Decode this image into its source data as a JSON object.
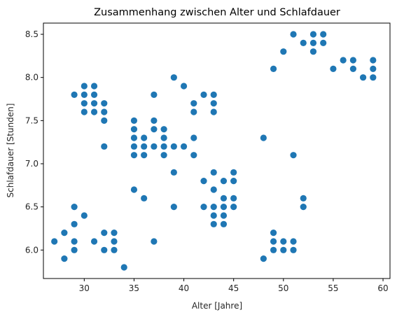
{
  "chart_data": {
    "type": "scatter",
    "title": "Zusammenhang zwischen Alter und Schlafdauer",
    "xlabel": "Alter [Jahre]",
    "ylabel": "Schlafdauer [Stunden]",
    "xlim": [
      25.9,
      60.7
    ],
    "ylim": [
      5.67,
      8.63
    ],
    "xticks": [
      30,
      35,
      40,
      45,
      50,
      55,
      60
    ],
    "yticks": [
      6.0,
      6.5,
      7.0,
      7.5,
      8.0,
      8.5
    ],
    "grid": false,
    "marker_color": "#1f77b4",
    "points": [
      [
        27,
        6.1
      ],
      [
        28,
        5.9
      ],
      [
        28,
        6.2
      ],
      [
        29,
        6.0
      ],
      [
        29,
        6.1
      ],
      [
        29,
        6.3
      ],
      [
        29,
        6.5
      ],
      [
        30,
        6.4
      ],
      [
        29,
        7.8
      ],
      [
        30,
        7.6
      ],
      [
        30,
        7.7
      ],
      [
        30,
        7.8
      ],
      [
        30,
        7.9
      ],
      [
        31,
        7.6
      ],
      [
        31,
        7.7
      ],
      [
        31,
        7.8
      ],
      [
        31,
        7.9
      ],
      [
        32,
        7.5
      ],
      [
        32,
        7.6
      ],
      [
        32,
        7.7
      ],
      [
        32,
        7.2
      ],
      [
        31,
        6.1
      ],
      [
        32,
        6.0
      ],
      [
        32,
        6.2
      ],
      [
        33,
        6.0
      ],
      [
        33,
        6.1
      ],
      [
        33,
        6.2
      ],
      [
        34,
        5.8
      ],
      [
        35,
        6.7
      ],
      [
        36,
        6.6
      ],
      [
        37,
        6.1
      ],
      [
        35,
        7.5
      ],
      [
        35,
        7.4
      ],
      [
        35,
        7.3
      ],
      [
        35,
        7.2
      ],
      [
        35,
        7.1
      ],
      [
        36,
        7.1
      ],
      [
        36,
        7.2
      ],
      [
        36,
        7.3
      ],
      [
        37,
        7.2
      ],
      [
        37,
        7.4
      ],
      [
        37,
        7.5
      ],
      [
        37,
        7.8
      ],
      [
        38,
        7.1
      ],
      [
        38,
        7.2
      ],
      [
        38,
        7.3
      ],
      [
        38,
        7.4
      ],
      [
        39,
        7.2
      ],
      [
        39,
        6.9
      ],
      [
        39,
        6.5
      ],
      [
        39,
        8.0
      ],
      [
        40,
        7.2
      ],
      [
        40,
        7.9
      ],
      [
        41,
        7.7
      ],
      [
        41,
        7.6
      ],
      [
        41,
        7.3
      ],
      [
        41,
        7.1
      ],
      [
        42,
        7.8
      ],
      [
        42,
        6.8
      ],
      [
        42,
        6.5
      ],
      [
        43,
        7.8
      ],
      [
        43,
        7.7
      ],
      [
        43,
        7.6
      ],
      [
        43,
        6.9
      ],
      [
        43,
        6.7
      ],
      [
        43,
        6.5
      ],
      [
        43,
        6.4
      ],
      [
        43,
        6.3
      ],
      [
        44,
        6.8
      ],
      [
        44,
        6.6
      ],
      [
        44,
        6.5
      ],
      [
        44,
        6.4
      ],
      [
        44,
        6.3
      ],
      [
        45,
        6.9
      ],
      [
        45,
        6.8
      ],
      [
        45,
        6.6
      ],
      [
        45,
        6.5
      ],
      [
        48,
        7.3
      ],
      [
        48,
        5.9
      ],
      [
        49,
        6.2
      ],
      [
        49,
        6.1
      ],
      [
        49,
        6.0
      ],
      [
        49,
        8.1
      ],
      [
        50,
        6.1
      ],
      [
        50,
        6.0
      ],
      [
        50,
        8.3
      ],
      [
        51,
        6.1
      ],
      [
        51,
        6.0
      ],
      [
        51,
        7.1
      ],
      [
        51,
        8.5
      ],
      [
        52,
        6.6
      ],
      [
        52,
        6.5
      ],
      [
        52,
        8.4
      ],
      [
        53,
        8.5
      ],
      [
        53,
        8.4
      ],
      [
        53,
        8.3
      ],
      [
        54,
        8.5
      ],
      [
        54,
        8.4
      ],
      [
        55,
        8.1
      ],
      [
        56,
        8.2
      ],
      [
        57,
        8.2
      ],
      [
        57,
        8.1
      ],
      [
        58,
        8.0
      ],
      [
        59,
        8.2
      ],
      [
        59,
        8.1
      ],
      [
        59,
        8.0
      ]
    ]
  }
}
